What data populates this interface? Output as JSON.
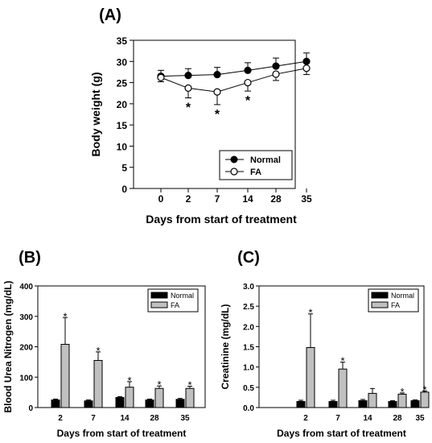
{
  "chart_data": [
    {
      "panel": "(A)",
      "type": "line",
      "xlabel": "Days from start of treatment",
      "ylabel": "Body weight (g)",
      "categories": [
        "0",
        "2",
        "7",
        "14",
        "28",
        "35"
      ],
      "ylim": [
        0,
        35
      ],
      "yticks": [
        0,
        5,
        10,
        15,
        20,
        25,
        30,
        35
      ],
      "series": [
        {
          "name": "Normal",
          "marker": "filled-circle",
          "values": [
            26.5,
            26.7,
            26.9,
            27.9,
            28.9,
            30.0
          ],
          "errors": [
            1.4,
            1.6,
            1.7,
            1.8,
            1.9,
            2.0
          ]
        },
        {
          "name": "FA",
          "marker": "open-circle",
          "values": [
            26.2,
            23.7,
            22.8,
            25.0,
            27.0,
            28.4
          ],
          "errors": [
            1.0,
            2.3,
            3.0,
            2.0,
            1.5,
            1.5
          ]
        }
      ],
      "significance": [
        "",
        "*",
        "*",
        "*",
        "",
        ""
      ],
      "legend_position": "bottom-right"
    },
    {
      "panel": "(B)",
      "type": "bar",
      "xlabel": "Days from start of treatment",
      "ylabel": "Blood Urea Nitrogen (mg/dL)",
      "categories": [
        "2",
        "7",
        "14",
        "28",
        "35"
      ],
      "ylim": [
        0,
        400
      ],
      "yticks": [
        0,
        100,
        200,
        300,
        400
      ],
      "series": [
        {
          "name": "Normal",
          "color": "#000000",
          "values": [
            25,
            22,
            33,
            25,
            27
          ],
          "errors": [
            3,
            3,
            3,
            3,
            3
          ]
        },
        {
          "name": "FA",
          "color": "#c0c0c0",
          "values": [
            208,
            155,
            67,
            63,
            63
          ],
          "errors": [
            88,
            28,
            18,
            8,
            7
          ]
        }
      ],
      "significance": [
        "*",
        "*",
        "*",
        "*",
        "*"
      ],
      "legend_position": "top-right"
    },
    {
      "panel": "(C)",
      "type": "bar",
      "xlabel": "Days from start of treatment",
      "ylabel": "Creatinine (mg/dL)",
      "categories": [
        "2",
        "7",
        "14",
        "28",
        "35"
      ],
      "ylim": [
        0,
        3.0
      ],
      "yticks": [
        "0.0",
        "0.5",
        "1.0",
        "1.5",
        "2.0",
        "2.5",
        "3.0"
      ],
      "series": [
        {
          "name": "Normal",
          "color": "#000000",
          "values": [
            0.15,
            0.15,
            0.17,
            0.15,
            0.17
          ],
          "errors": [
            0.03,
            0.03,
            0.03,
            0.02,
            0.02
          ]
        },
        {
          "name": "FA",
          "color": "#c0c0c0",
          "values": [
            1.48,
            0.95,
            0.35,
            0.33,
            0.38
          ],
          "errors": [
            0.83,
            0.17,
            0.12,
            0.03,
            0.03
          ]
        }
      ],
      "significance": [
        "*",
        "*",
        "",
        "*",
        "*"
      ],
      "legend_position": "top-right"
    }
  ]
}
